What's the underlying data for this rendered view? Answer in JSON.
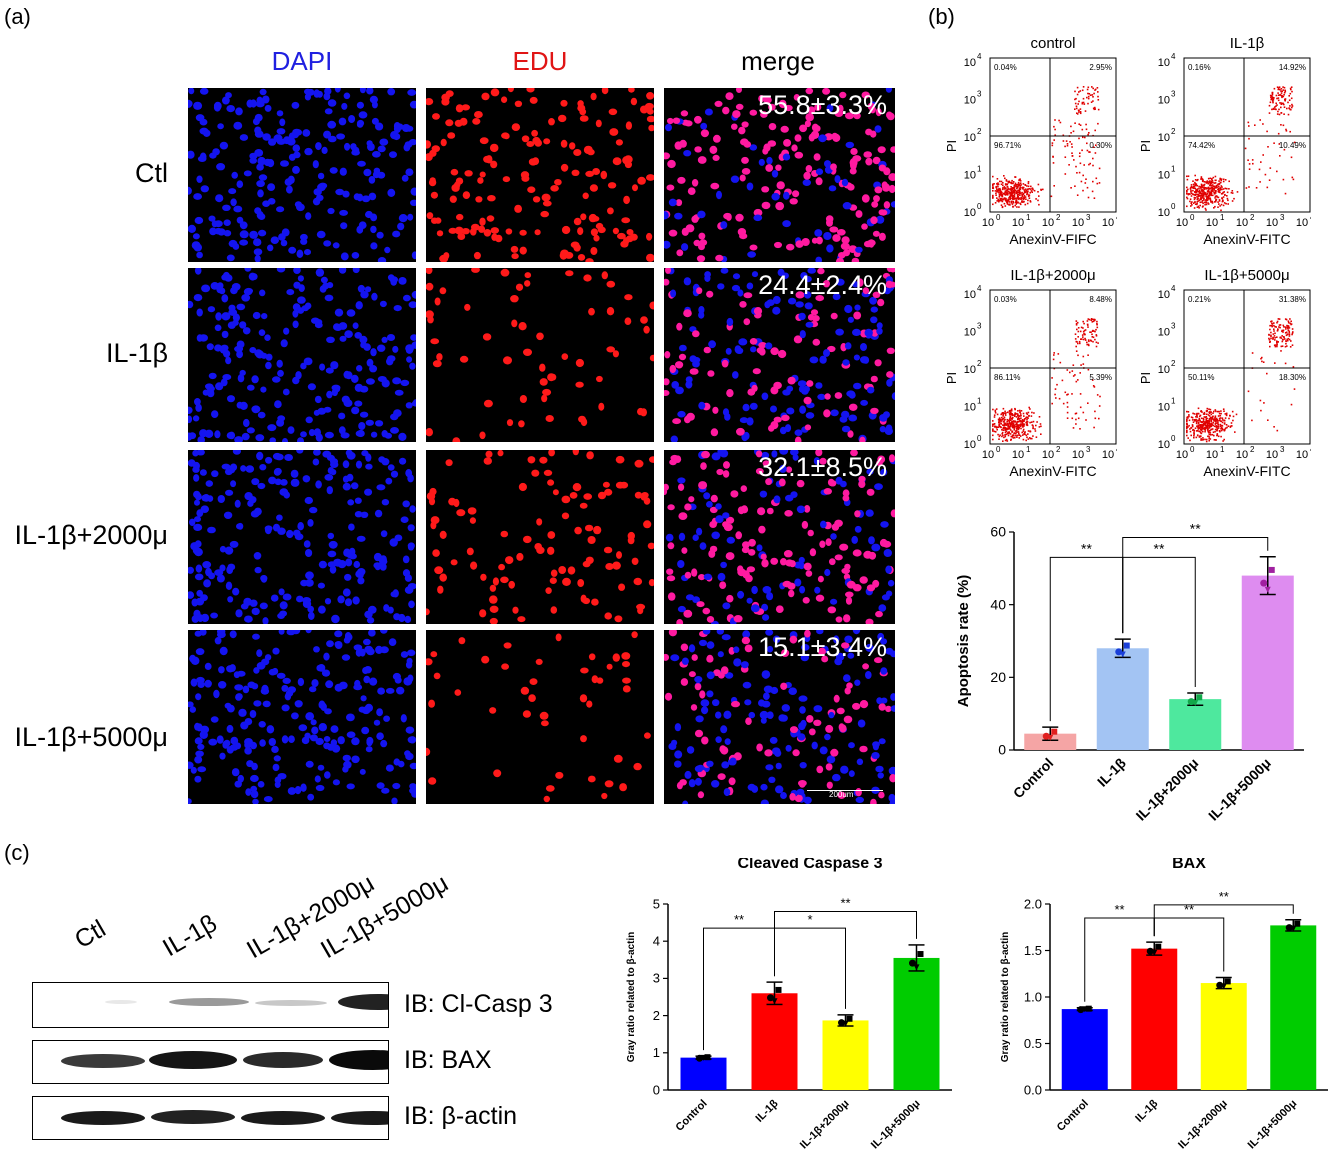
{
  "panel_a": {
    "label": "(a)",
    "columns": [
      "DAPI",
      "EDU",
      "merge"
    ],
    "column_colors": [
      "#2020e0",
      "#e01515",
      "#000000"
    ],
    "rows": [
      "Ctl",
      "IL-1β",
      "IL-1β+2000μ",
      "IL-1β+5000μ"
    ],
    "percentages": [
      "55.8±3.3%",
      "24.4±2.4%",
      "32.1±8.5%",
      "15.1±3.4%"
    ],
    "scale_bar": "200um"
  },
  "panel_b": {
    "label": "(b)",
    "flow": {
      "plots": [
        {
          "title": "control",
          "xlabel": "AnexinV-FIFC",
          "q": [
            "0.04%",
            "2.95%",
            "96.71%",
            "0.30%"
          ]
        },
        {
          "title": "IL-1β",
          "xlabel": "AnexinV-FITC",
          "q": [
            "0.16%",
            "14.92%",
            "74.42%",
            "10.49%"
          ]
        },
        {
          "title": "IL-1β+2000μ",
          "xlabel": "AnexinV-FITC",
          "q": [
            "0.03%",
            "8.48%",
            "86.11%",
            "5.39%"
          ]
        },
        {
          "title": "IL-1β+5000μ",
          "xlabel": "AnexinV-FITC",
          "q": [
            "0.21%",
            "31.38%",
            "50.11%",
            "18.30%"
          ]
        }
      ],
      "ylabel": "PI",
      "ticks": [
        "10",
        "10",
        "10",
        "10",
        "10"
      ],
      "tick_exponents": [
        "0",
        "1",
        "2",
        "3",
        "4"
      ]
    },
    "sig_labels": [
      "**",
      "**",
      "**"
    ]
  },
  "panel_c": {
    "label": "(c)",
    "blot_lanes": [
      "Ctl",
      "IL-1β",
      "IL-1β+2000μ",
      "IL-1β+5000μ"
    ],
    "blot_labels": [
      "IB: Cl-Casp 3",
      "IB: BAX",
      "IB: β-actin"
    ],
    "sig_labels_casp": [
      "**",
      "*",
      "**"
    ],
    "sig_labels_bax": [
      "**",
      "**",
      "**"
    ]
  },
  "chart_data": [
    {
      "type": "bar",
      "title": "",
      "ylabel": "Apoptosis rate (%)",
      "categories": [
        "Control",
        "IL-1β",
        "IL-1β+2000μ",
        "IL-1β+5000μ"
      ],
      "values": [
        4.5,
        28,
        14,
        48
      ],
      "errors": [
        1.8,
        2.5,
        1.7,
        5.2
      ],
      "ylim": [
        0,
        60
      ],
      "yticks": [
        "0",
        "20",
        "40",
        "60"
      ],
      "colors": [
        "#f5a5a5",
        "#a3c4f3",
        "#4ee89e",
        "#de8cf0"
      ],
      "point_colors": [
        "#e02020",
        "#1a3fd8",
        "#12a84a",
        "#a020a0"
      ]
    },
    {
      "type": "bar",
      "title": "Cleaved Caspase 3",
      "ylabel": "Gray ratio related to β-actin",
      "categories": [
        "Control",
        "IL-1β",
        "IL-1β+2000μ",
        "IL-1β+5000μ"
      ],
      "values": [
        0.87,
        2.6,
        1.87,
        3.55
      ],
      "errors": [
        0.04,
        0.3,
        0.15,
        0.35
      ],
      "ylim": [
        0,
        5
      ],
      "yticks": [
        "0",
        "1",
        "2",
        "3",
        "4",
        "5"
      ],
      "colors": [
        "#0000ff",
        "#ff0000",
        "#ffff00",
        "#00cc00"
      ]
    },
    {
      "type": "bar",
      "title": "BAX",
      "ylabel": "Gray ratio related to β-actin",
      "categories": [
        "Control",
        "IL-1β",
        "IL-1β+2000μ",
        "IL-1β+5000μ"
      ],
      "values": [
        0.87,
        1.52,
        1.15,
        1.77
      ],
      "errors": [
        0.015,
        0.07,
        0.06,
        0.06
      ],
      "ylim": [
        0,
        2.0
      ],
      "yticks": [
        "0.0",
        "0.5",
        "1.0",
        "1.5",
        "2.0"
      ],
      "colors": [
        "#0000ff",
        "#ff0000",
        "#ffff00",
        "#00cc00"
      ]
    }
  ]
}
